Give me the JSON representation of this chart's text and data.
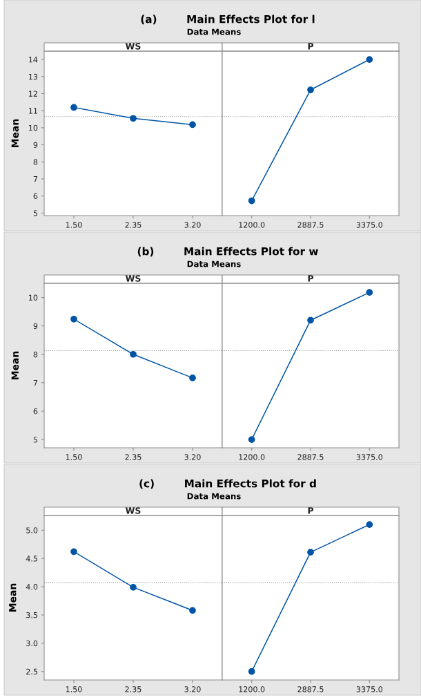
{
  "chart_data": [
    {
      "type": "line",
      "title": "(a)        Main Effects Plot for l",
      "subtitle": "Data Means",
      "xlabel": "WS",
      "ylabel": "Mean",
      "categories": [
        "1.50",
        "2.35",
        "3.20"
      ],
      "series": [
        {
          "color": "#0054a6",
          "values": [
            11.19,
            10.55,
            10.18
          ]
        }
      ],
      "ylim": [
        4.85,
        14.49
      ],
      "yticks": [
        5,
        6,
        7,
        8,
        9,
        10,
        11,
        12,
        13,
        14
      ],
      "ref_lines": [
        {
          "axis": "y",
          "value": 10.65,
          "color": "#999999",
          "line_style": "dotted"
        }
      ],
      "marker": "circle",
      "line_style": "solid",
      "grid": false,
      "legend": false
    },
    {
      "type": "line",
      "xlabel": "P",
      "categories": [
        "1200.0",
        "2887.5",
        "3375.0"
      ],
      "series": [
        {
          "color": "#0054a6",
          "values": [
            5.72,
            12.22,
            14.0
          ]
        }
      ],
      "ylim": [
        4.85,
        14.49
      ],
      "tick_labels": "x",
      "ref_lines": [
        {
          "axis": "y",
          "value": 10.65,
          "color": "#999999",
          "line_style": "dotted"
        }
      ],
      "marker": "circle",
      "line_style": "solid",
      "grid": false,
      "legend": false
    },
    {
      "type": "line",
      "title": "(b)        Main Effects Plot for w",
      "subtitle": "Data Means",
      "xlabel": "WS",
      "ylabel": "Mean",
      "categories": [
        "1.50",
        "2.35",
        "3.20"
      ],
      "series": [
        {
          "color": "#0054a6",
          "values": [
            9.24,
            8.0,
            7.17
          ]
        }
      ],
      "ylim": [
        4.71,
        10.5
      ],
      "yticks": [
        5,
        6,
        7,
        8,
        9,
        10
      ],
      "ref_lines": [
        {
          "axis": "y",
          "value": 8.13,
          "color": "#999999",
          "line_style": "dotted"
        }
      ],
      "marker": "circle",
      "line_style": "solid",
      "grid": false,
      "legend": false
    },
    {
      "type": "line",
      "xlabel": "P",
      "categories": [
        "1200.0",
        "2887.5",
        "3375.0"
      ],
      "series": [
        {
          "color": "#0054a6",
          "values": [
            5.0,
            9.2,
            10.18
          ]
        }
      ],
      "ylim": [
        4.71,
        10.5
      ],
      "tick_labels": "x",
      "ref_lines": [
        {
          "axis": "y",
          "value": 8.13,
          "color": "#999999",
          "line_style": "dotted"
        }
      ],
      "marker": "circle",
      "line_style": "solid",
      "grid": false,
      "legend": false
    },
    {
      "type": "line",
      "title": "(c)        Main Effects Plot for d",
      "subtitle": "Data Means",
      "xlabel": "WS",
      "ylabel": "Mean",
      "categories": [
        "1.50",
        "2.35",
        "3.20"
      ],
      "series": [
        {
          "color": "#0054a6",
          "values": [
            4.62,
            3.99,
            3.58
          ]
        }
      ],
      "ylim": [
        2.35,
        5.26
      ],
      "yticks": [
        {
          "value": 2.5,
          "label": "2.5"
        },
        {
          "value": 3,
          "label": "3.0"
        },
        {
          "value": 3.5,
          "label": "3.5"
        },
        {
          "value": 4,
          "label": "4.0"
        },
        {
          "value": 4.5,
          "label": "4.5"
        },
        {
          "value": 5,
          "label": "5.0"
        }
      ],
      "ref_lines": [
        {
          "axis": "y",
          "value": 4.07,
          "color": "#999999",
          "line_style": "dotted"
        }
      ],
      "marker": "circle",
      "line_style": "solid",
      "grid": false,
      "legend": false
    },
    {
      "type": "line",
      "xlabel": "P",
      "categories": [
        "1200.0",
        "2887.5",
        "3375.0"
      ],
      "series": [
        {
          "color": "#0054a6",
          "values": [
            2.5,
            4.61,
            5.1
          ]
        }
      ],
      "ylim": [
        2.35,
        5.26
      ],
      "tick_labels": "x",
      "ref_lines": [
        {
          "axis": "y",
          "value": 4.07,
          "color": "#999999",
          "line_style": "dotted"
        }
      ],
      "marker": "circle",
      "line_style": "solid",
      "grid": false,
      "legend": false
    }
  ]
}
